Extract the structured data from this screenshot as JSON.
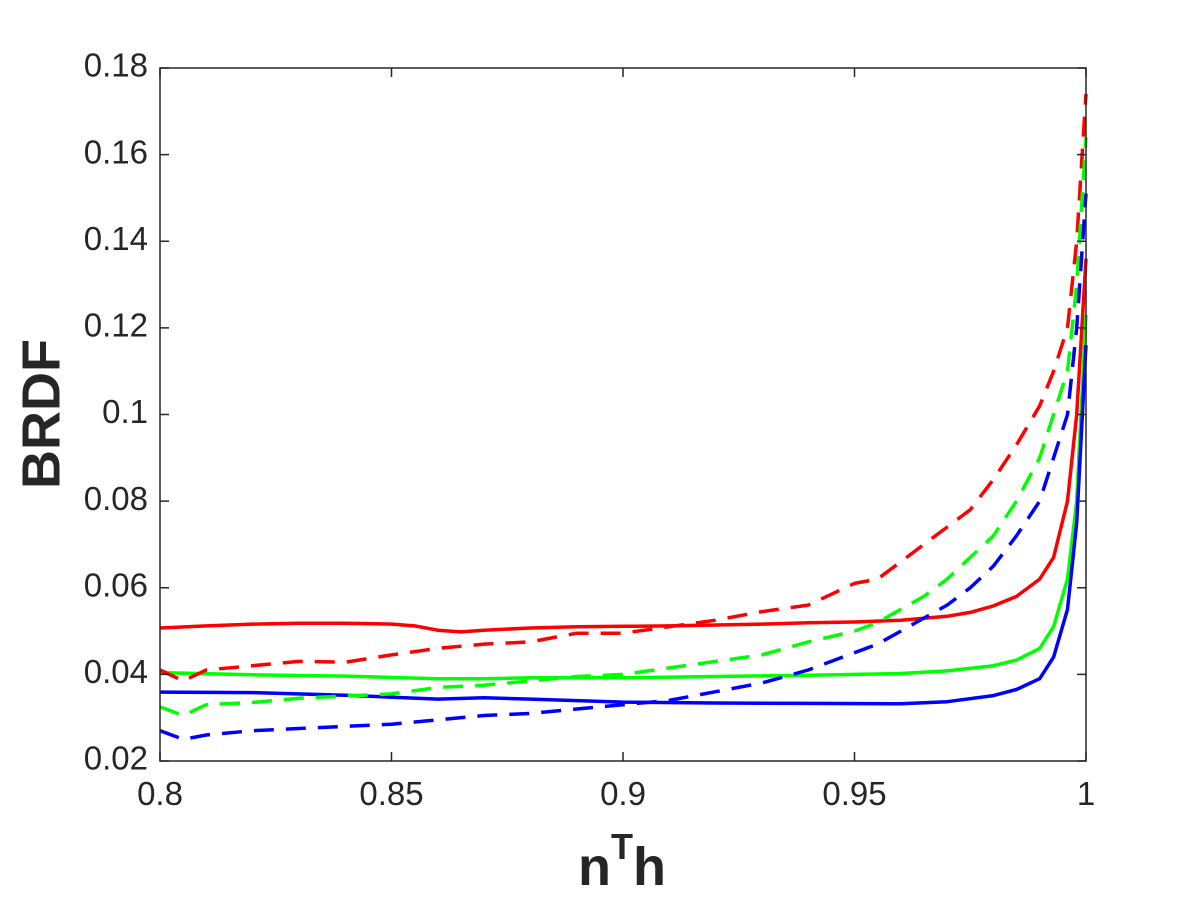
{
  "chart_data": {
    "type": "line",
    "title": "",
    "xlabel": "n",
    "xlabel_sup": "T",
    "xlabel_suffix": "h",
    "ylabel": "BRDF",
    "xlim": [
      0.8,
      1.0
    ],
    "ylim": [
      0.02,
      0.18
    ],
    "x_ticks": [
      0.8,
      0.85,
      0.9,
      0.95,
      1.0
    ],
    "x_tick_labels": [
      "0.8",
      "0.85",
      "0.9",
      "0.95",
      "1"
    ],
    "y_ticks": [
      0.02,
      0.04,
      0.06,
      0.08,
      0.1,
      0.12,
      0.14,
      0.16,
      0.18
    ],
    "y_tick_labels": [
      "0.02",
      "0.04",
      "0.06",
      "0.08",
      "0.1",
      "0.12",
      "0.14",
      "0.16",
      "0.18"
    ],
    "grid": false,
    "legend": "none",
    "series": [
      {
        "color": "#ff0000",
        "style": "solid",
        "x": [
          0.8,
          0.81,
          0.82,
          0.83,
          0.84,
          0.85,
          0.855,
          0.86,
          0.865,
          0.87,
          0.88,
          0.89,
          0.9,
          0.91,
          0.92,
          0.93,
          0.94,
          0.95,
          0.96,
          0.97,
          0.975,
          0.98,
          0.985,
          0.99,
          0.993,
          0.996,
          0.998,
          1.0
        ],
        "y": [
          0.0507,
          0.0512,
          0.0516,
          0.0518,
          0.0518,
          0.0516,
          0.0512,
          0.0502,
          0.0498,
          0.0502,
          0.0507,
          0.051,
          0.0511,
          0.0512,
          0.0514,
          0.0516,
          0.0519,
          0.0521,
          0.0525,
          0.0534,
          0.0543,
          0.0558,
          0.058,
          0.062,
          0.067,
          0.08,
          0.1,
          0.136
        ]
      },
      {
        "color": "#00ff00",
        "style": "solid",
        "x": [
          0.8,
          0.82,
          0.84,
          0.86,
          0.87,
          0.88,
          0.9,
          0.92,
          0.94,
          0.96,
          0.97,
          0.98,
          0.985,
          0.99,
          0.993,
          0.996,
          0.998,
          1.0
        ],
        "y": [
          0.0404,
          0.0399,
          0.0396,
          0.039,
          0.039,
          0.0392,
          0.0392,
          0.0395,
          0.0398,
          0.0402,
          0.0408,
          0.042,
          0.0433,
          0.046,
          0.051,
          0.062,
          0.08,
          0.123
        ]
      },
      {
        "color": "#0000ff",
        "style": "solid",
        "x": [
          0.8,
          0.82,
          0.84,
          0.86,
          0.87,
          0.88,
          0.9,
          0.92,
          0.94,
          0.96,
          0.97,
          0.98,
          0.985,
          0.99,
          0.993,
          0.996,
          0.998,
          1.0
        ],
        "y": [
          0.0359,
          0.0358,
          0.0352,
          0.0343,
          0.0346,
          0.0343,
          0.0336,
          0.0334,
          0.0333,
          0.0332,
          0.0337,
          0.0351,
          0.0365,
          0.039,
          0.044,
          0.055,
          0.075,
          0.116
        ]
      },
      {
        "color": "#ff0000",
        "style": "dashed",
        "x": [
          0.8,
          0.805,
          0.81,
          0.82,
          0.83,
          0.84,
          0.85,
          0.86,
          0.87,
          0.88,
          0.89,
          0.9,
          0.91,
          0.92,
          0.93,
          0.94,
          0.95,
          0.955,
          0.96,
          0.965,
          0.97,
          0.975,
          0.98,
          0.985,
          0.99,
          0.993,
          0.996,
          0.998,
          1.0
        ],
        "y": [
          0.041,
          0.0385,
          0.041,
          0.042,
          0.043,
          0.0428,
          0.0445,
          0.046,
          0.047,
          0.0475,
          0.0495,
          0.0495,
          0.051,
          0.0525,
          0.0545,
          0.056,
          0.061,
          0.062,
          0.066,
          0.07,
          0.074,
          0.078,
          0.085,
          0.093,
          0.102,
          0.11,
          0.12,
          0.14,
          0.174
        ]
      },
      {
        "color": "#00ff00",
        "style": "dashed",
        "x": [
          0.8,
          0.805,
          0.81,
          0.82,
          0.83,
          0.84,
          0.85,
          0.86,
          0.87,
          0.88,
          0.89,
          0.9,
          0.91,
          0.92,
          0.93,
          0.94,
          0.95,
          0.955,
          0.96,
          0.965,
          0.97,
          0.975,
          0.98,
          0.985,
          0.99,
          0.993,
          0.996,
          0.998,
          1.0
        ],
        "y": [
          0.0325,
          0.0305,
          0.033,
          0.0335,
          0.0345,
          0.035,
          0.0355,
          0.037,
          0.0375,
          0.0385,
          0.0395,
          0.04,
          0.0415,
          0.043,
          0.0445,
          0.0475,
          0.05,
          0.052,
          0.055,
          0.058,
          0.062,
          0.067,
          0.072,
          0.08,
          0.09,
          0.1,
          0.11,
          0.13,
          0.164
        ]
      },
      {
        "color": "#0000ff",
        "style": "dashed",
        "x": [
          0.8,
          0.805,
          0.81,
          0.82,
          0.83,
          0.84,
          0.85,
          0.86,
          0.87,
          0.88,
          0.89,
          0.9,
          0.91,
          0.92,
          0.93,
          0.94,
          0.95,
          0.955,
          0.96,
          0.965,
          0.97,
          0.975,
          0.98,
          0.985,
          0.99,
          0.993,
          0.996,
          0.998,
          1.0
        ],
        "y": [
          0.027,
          0.025,
          0.026,
          0.027,
          0.0275,
          0.028,
          0.0285,
          0.0295,
          0.0305,
          0.031,
          0.032,
          0.033,
          0.034,
          0.036,
          0.038,
          0.041,
          0.045,
          0.047,
          0.05,
          0.053,
          0.056,
          0.06,
          0.065,
          0.072,
          0.08,
          0.09,
          0.1,
          0.12,
          0.151
        ]
      }
    ]
  }
}
